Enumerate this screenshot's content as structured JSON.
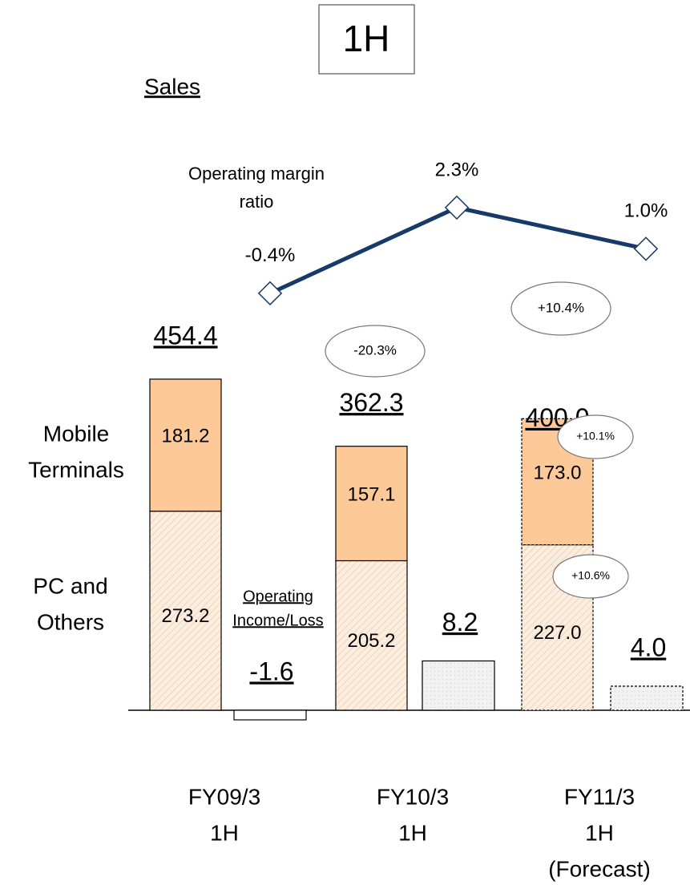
{
  "chart_data": {
    "type": "bar",
    "title": "1H",
    "subtitle": "Sales",
    "categories": [
      [
        "FY09/3",
        "1H"
      ],
      [
        "FY10/3",
        "1H"
      ],
      [
        "FY11/3",
        "1H",
        "(Forecast)"
      ]
    ],
    "forecast": [
      false,
      false,
      true
    ],
    "series": [
      {
        "name": [
          "PC and",
          "Others"
        ],
        "color": "#fbeee0",
        "hatch": "#eccaa6",
        "values": [
          273.2,
          205.2,
          227.0
        ],
        "value_labels": [
          "273.2",
          "205.2",
          "227.0"
        ]
      },
      {
        "name": [
          "Mobile",
          "Terminals"
        ],
        "color": "#fdc998",
        "values": [
          181.2,
          157.1,
          173.0
        ],
        "value_labels": [
          "181.2",
          "157.1",
          "173.0"
        ]
      }
    ],
    "totals": {
      "values": [
        454.4,
        362.3,
        400.0
      ],
      "value_labels": [
        "454.4",
        "362.3",
        "400.0"
      ]
    },
    "operating_income": {
      "name": [
        "Operating",
        "Income/Loss"
      ],
      "color": "#f2f2f2",
      "values": [
        -1.6,
        8.2,
        4.0
      ],
      "value_labels": [
        "-1.6",
        "8.2",
        "4.0"
      ]
    },
    "margin": {
      "name": [
        "Operating margin",
        "ratio"
      ],
      "color": "#173a68",
      "values": [
        -0.4,
        2.3,
        1.0
      ],
      "value_labels": [
        "-0.4%",
        "2.3%",
        "1.0%"
      ]
    },
    "sales_growth": [
      "-20.3%",
      "+10.4%"
    ],
    "segment_growth": [
      "+10.1%",
      "+10.6%"
    ]
  }
}
